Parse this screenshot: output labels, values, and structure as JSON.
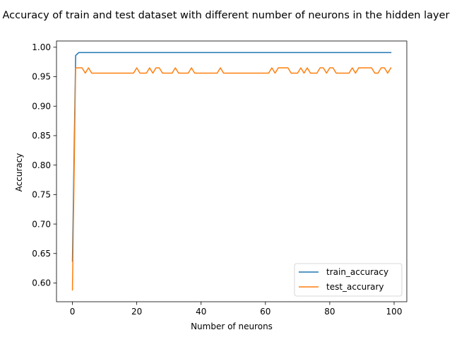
{
  "chart_data": {
    "type": "line",
    "title": "Accuracy of train and test dataset with different number of neurons in the hidden layer",
    "xlabel": "Number of neurons",
    "ylabel": "Accuracy",
    "xlim": [
      -4.95,
      103.95
    ],
    "ylim": [
      0.5682,
      1.0106
    ],
    "xticks": [
      0,
      20,
      40,
      60,
      80,
      100
    ],
    "yticks": [
      0.6,
      0.65,
      0.7,
      0.75,
      0.8,
      0.85,
      0.9,
      0.95,
      1.0
    ],
    "grid": false,
    "legend_position": "lower-right",
    "series": [
      {
        "name": "train_accuracy",
        "color": "#1f77b4",
        "x": [
          0,
          1,
          2,
          3,
          4,
          5,
          6,
          7,
          8,
          9,
          10,
          11,
          12,
          13,
          14,
          15,
          16,
          17,
          18,
          19,
          20,
          21,
          22,
          23,
          24,
          25,
          26,
          27,
          28,
          29,
          30,
          31,
          32,
          33,
          34,
          35,
          36,
          37,
          38,
          39,
          40,
          41,
          42,
          43,
          44,
          45,
          46,
          47,
          48,
          49,
          50,
          51,
          52,
          53,
          54,
          55,
          56,
          57,
          58,
          59,
          60,
          61,
          62,
          63,
          64,
          65,
          66,
          67,
          68,
          69,
          70,
          71,
          72,
          73,
          74,
          75,
          76,
          77,
          78,
          79,
          80,
          81,
          82,
          83,
          84,
          85,
          86,
          87,
          88,
          89,
          90,
          91,
          92,
          93,
          94,
          95,
          96,
          97,
          98,
          99
        ],
        "values": [
          0.637,
          0.986,
          0.991,
          0.991,
          0.991,
          0.991,
          0.991,
          0.991,
          0.991,
          0.991,
          0.991,
          0.991,
          0.991,
          0.991,
          0.991,
          0.991,
          0.991,
          0.991,
          0.991,
          0.991,
          0.991,
          0.991,
          0.991,
          0.991,
          0.991,
          0.991,
          0.991,
          0.991,
          0.991,
          0.991,
          0.991,
          0.991,
          0.991,
          0.991,
          0.991,
          0.991,
          0.991,
          0.991,
          0.991,
          0.991,
          0.991,
          0.991,
          0.991,
          0.991,
          0.991,
          0.991,
          0.991,
          0.991,
          0.991,
          0.991,
          0.991,
          0.991,
          0.991,
          0.991,
          0.991,
          0.991,
          0.991,
          0.991,
          0.991,
          0.991,
          0.991,
          0.991,
          0.991,
          0.991,
          0.991,
          0.991,
          0.991,
          0.991,
          0.991,
          0.991,
          0.991,
          0.991,
          0.991,
          0.991,
          0.991,
          0.991,
          0.991,
          0.991,
          0.991,
          0.991,
          0.991,
          0.991,
          0.991,
          0.991,
          0.991,
          0.991,
          0.991,
          0.991,
          0.991,
          0.991,
          0.991,
          0.991,
          0.991,
          0.991,
          0.991,
          0.991,
          0.991,
          0.991,
          0.991,
          0.991
        ]
      },
      {
        "name": "test_accurary",
        "color": "#ff7f0e",
        "x": [
          0,
          1,
          2,
          3,
          4,
          5,
          6,
          7,
          8,
          9,
          10,
          11,
          12,
          13,
          14,
          15,
          16,
          17,
          18,
          19,
          20,
          21,
          22,
          23,
          24,
          25,
          26,
          27,
          28,
          29,
          30,
          31,
          32,
          33,
          34,
          35,
          36,
          37,
          38,
          39,
          40,
          41,
          42,
          43,
          44,
          45,
          46,
          47,
          48,
          49,
          50,
          51,
          52,
          53,
          54,
          55,
          56,
          57,
          58,
          59,
          60,
          61,
          62,
          63,
          64,
          65,
          66,
          67,
          68,
          69,
          70,
          71,
          72,
          73,
          74,
          75,
          76,
          77,
          78,
          79,
          80,
          81,
          82,
          83,
          84,
          85,
          86,
          87,
          88,
          89,
          90,
          91,
          92,
          93,
          94,
          95,
          96,
          97,
          98,
          99
        ],
        "values": [
          0.588,
          0.965,
          0.965,
          0.965,
          0.956,
          0.965,
          0.956,
          0.956,
          0.956,
          0.956,
          0.956,
          0.956,
          0.956,
          0.956,
          0.956,
          0.956,
          0.956,
          0.956,
          0.956,
          0.956,
          0.965,
          0.956,
          0.956,
          0.956,
          0.965,
          0.956,
          0.965,
          0.965,
          0.956,
          0.956,
          0.956,
          0.956,
          0.965,
          0.956,
          0.956,
          0.956,
          0.956,
          0.965,
          0.956,
          0.956,
          0.956,
          0.956,
          0.956,
          0.956,
          0.956,
          0.956,
          0.965,
          0.956,
          0.956,
          0.956,
          0.956,
          0.956,
          0.956,
          0.956,
          0.956,
          0.956,
          0.956,
          0.956,
          0.956,
          0.956,
          0.956,
          0.956,
          0.965,
          0.956,
          0.965,
          0.965,
          0.965,
          0.965,
          0.956,
          0.956,
          0.956,
          0.965,
          0.956,
          0.965,
          0.956,
          0.956,
          0.956,
          0.965,
          0.965,
          0.956,
          0.965,
          0.965,
          0.956,
          0.956,
          0.956,
          0.956,
          0.956,
          0.965,
          0.956,
          0.965,
          0.965,
          0.965,
          0.965,
          0.965,
          0.956,
          0.956,
          0.965,
          0.965,
          0.956,
          0.965
        ]
      }
    ]
  }
}
